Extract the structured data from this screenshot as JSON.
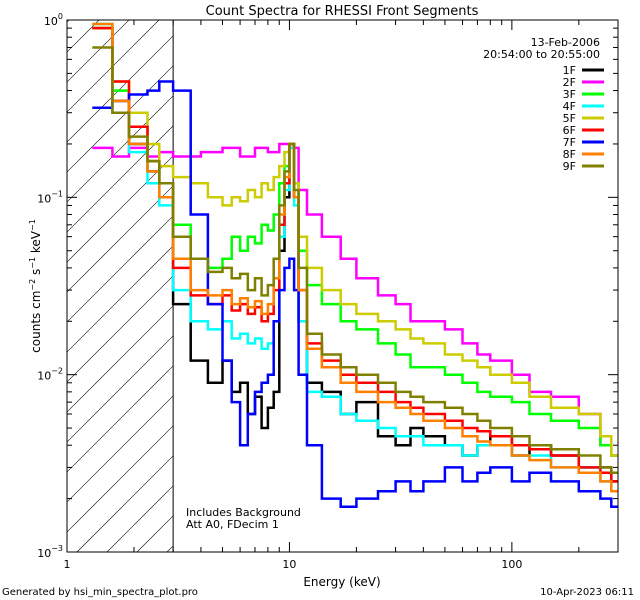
{
  "chart_data": {
    "type": "line",
    "title": "Count Spectra for RHESSI Front Segments",
    "xlabel": "Energy (keV)",
    "ylabel_parts": {
      "base": "counts cm",
      "exp1": "−2",
      "mid1": " s",
      "exp2": "−1",
      "mid2": " keV",
      "exp3": "−1"
    },
    "xscale": "log",
    "yscale": "log",
    "xlim": [
      1,
      300
    ],
    "ylim": [
      0.001,
      1
    ],
    "xticks": [
      {
        "value": 1,
        "label": "1"
      },
      {
        "value": 10,
        "label": "10"
      },
      {
        "value": 100,
        "label": "100"
      }
    ],
    "yticks": [
      {
        "value": 1,
        "base": "10",
        "exp": "0"
      },
      {
        "value": 0.1,
        "base": "10",
        "exp": "−1"
      },
      {
        "value": 0.01,
        "base": "10",
        "exp": "−2"
      },
      {
        "value": 0.001,
        "base": "10",
        "exp": "−3"
      }
    ],
    "date": "13-Feb-2006",
    "time_range": "20:54:00 to 20:55:00",
    "hatched_region_max_energy": 3,
    "annotations": [
      "Includes Background",
      "Att A0, FDecim 1"
    ],
    "series": [
      {
        "name": "1F",
        "color": "#000000",
        "x": [
          1.3,
          1.6,
          1.9,
          2.3,
          2.6,
          3.0,
          3.6,
          4.3,
          5.0,
          5.5,
          6.0,
          6.5,
          7.0,
          7.5,
          8.0,
          8.5,
          9.0,
          9.5,
          10.0,
          10.5,
          11.0,
          12.0,
          14,
          17,
          20,
          25,
          30,
          35,
          40,
          50,
          60,
          70,
          80,
          100,
          120,
          150,
          200,
          250,
          280
        ],
        "y": [
          0.9,
          0.35,
          0.2,
          0.14,
          0.1,
          0.025,
          0.012,
          0.009,
          0.012,
          0.008,
          0.009,
          0.006,
          0.0075,
          0.005,
          0.0065,
          0.008,
          0.05,
          0.1,
          0.2,
          0.1,
          0.02,
          0.009,
          0.008,
          0.006,
          0.007,
          0.0045,
          0.004,
          0.005,
          0.0045,
          0.004,
          0.0035,
          0.004,
          0.0045,
          0.0035,
          0.004,
          0.0035,
          0.003,
          0.003,
          0.0025
        ]
      },
      {
        "name": "2F",
        "color": "#ff00ff",
        "x": [
          1.3,
          1.6,
          1.9,
          2.3,
          2.6,
          3.0,
          4,
          5,
          6,
          7,
          8,
          9,
          10,
          11,
          12,
          14,
          17,
          20,
          25,
          30,
          35,
          40,
          50,
          60,
          70,
          80,
          100,
          120,
          150,
          200,
          250,
          280
        ],
        "y": [
          0.19,
          0.17,
          0.19,
          0.17,
          0.18,
          0.17,
          0.18,
          0.19,
          0.17,
          0.19,
          0.18,
          0.2,
          0.19,
          0.11,
          0.08,
          0.06,
          0.045,
          0.035,
          0.028,
          0.025,
          0.02,
          0.02,
          0.018,
          0.015,
          0.013,
          0.012,
          0.01,
          0.008,
          0.0075,
          0.006,
          0.004,
          0.0035
        ]
      },
      {
        "name": "3F",
        "color": "#00ff00",
        "x": [
          1.3,
          1.6,
          1.9,
          2.3,
          2.6,
          3.0,
          3.6,
          4.3,
          5.0,
          5.5,
          6.0,
          6.5,
          7.0,
          7.5,
          8.0,
          8.5,
          9.0,
          9.5,
          10.0,
          10.5,
          11.0,
          12.0,
          14,
          17,
          20,
          25,
          30,
          35,
          40,
          50,
          60,
          70,
          80,
          100,
          120,
          150,
          200,
          250,
          280
        ],
        "y": [
          0.9,
          0.4,
          0.25,
          0.16,
          0.12,
          0.07,
          0.045,
          0.04,
          0.045,
          0.06,
          0.05,
          0.06,
          0.055,
          0.07,
          0.065,
          0.08,
          0.12,
          0.15,
          0.2,
          0.12,
          0.05,
          0.032,
          0.025,
          0.02,
          0.018,
          0.015,
          0.013,
          0.011,
          0.011,
          0.01,
          0.009,
          0.008,
          0.0075,
          0.007,
          0.006,
          0.0055,
          0.005,
          0.004,
          0.0035
        ]
      },
      {
        "name": "4F",
        "color": "#00ffff",
        "x": [
          1.3,
          1.6,
          1.9,
          2.3,
          2.6,
          3.0,
          3.6,
          4.3,
          5.0,
          5.5,
          6.0,
          6.5,
          7.0,
          7.5,
          8.0,
          8.5,
          9.0,
          9.5,
          10.0,
          10.5,
          11.0,
          12.0,
          14,
          17,
          20,
          25,
          30,
          35,
          40,
          50,
          60,
          70,
          80,
          100,
          120,
          150,
          200,
          250,
          280
        ],
        "y": [
          0.95,
          0.3,
          0.18,
          0.12,
          0.09,
          0.03,
          0.02,
          0.018,
          0.02,
          0.016,
          0.017,
          0.015,
          0.016,
          0.014,
          0.015,
          0.02,
          0.06,
          0.11,
          0.19,
          0.09,
          0.02,
          0.008,
          0.0075,
          0.006,
          0.0055,
          0.005,
          0.0045,
          0.0045,
          0.004,
          0.004,
          0.0035,
          0.004,
          0.004,
          0.0035,
          0.0035,
          0.003,
          0.003,
          0.0025,
          0.0022
        ]
      },
      {
        "name": "5F",
        "color": "#cccc00",
        "x": [
          1.3,
          1.6,
          1.9,
          2.3,
          2.6,
          3.0,
          3.6,
          4.3,
          5.0,
          5.5,
          6.0,
          6.5,
          7.0,
          7.5,
          8.0,
          8.5,
          9.0,
          9.5,
          10.0,
          10.5,
          11.0,
          12.0,
          14,
          17,
          20,
          25,
          30,
          35,
          40,
          50,
          60,
          70,
          80,
          100,
          120,
          150,
          200,
          250,
          280
        ],
        "y": [
          0.9,
          0.45,
          0.3,
          0.2,
          0.15,
          0.13,
          0.12,
          0.1,
          0.09,
          0.1,
          0.095,
          0.11,
          0.1,
          0.12,
          0.11,
          0.13,
          0.15,
          0.18,
          0.2,
          0.12,
          0.06,
          0.04,
          0.03,
          0.025,
          0.022,
          0.02,
          0.018,
          0.016,
          0.015,
          0.013,
          0.012,
          0.011,
          0.01,
          0.009,
          0.0075,
          0.0065,
          0.006,
          0.0045,
          0.0035
        ]
      },
      {
        "name": "6F",
        "color": "#ff0000",
        "x": [
          1.3,
          1.6,
          1.9,
          2.3,
          2.6,
          3.0,
          3.6,
          4.3,
          5.0,
          5.5,
          6.0,
          6.5,
          7.0,
          7.5,
          8.0,
          8.5,
          9.0,
          9.5,
          10.0,
          10.5,
          11.0,
          12.0,
          14,
          17,
          20,
          25,
          30,
          35,
          40,
          50,
          60,
          70,
          80,
          100,
          120,
          150,
          200,
          250,
          280
        ],
        "y": [
          0.9,
          0.45,
          0.25,
          0.16,
          0.12,
          0.04,
          0.028,
          0.025,
          0.028,
          0.023,
          0.025,
          0.022,
          0.024,
          0.02,
          0.022,
          0.03,
          0.07,
          0.12,
          0.2,
          0.1,
          0.03,
          0.015,
          0.012,
          0.01,
          0.009,
          0.008,
          0.007,
          0.0065,
          0.006,
          0.0055,
          0.005,
          0.0048,
          0.0045,
          0.004,
          0.0038,
          0.0035,
          0.003,
          0.0028,
          0.0025
        ]
      },
      {
        "name": "7F",
        "color": "#0000ff",
        "x": [
          1.3,
          1.6,
          1.9,
          2.3,
          2.6,
          3.0,
          3.6,
          4.3,
          5.0,
          5.5,
          6.0,
          6.5,
          7.0,
          7.5,
          8.0,
          8.5,
          9.0,
          9.5,
          10.0,
          10.5,
          11.0,
          12.0,
          14,
          17,
          20,
          25,
          30,
          35,
          40,
          50,
          60,
          70,
          80,
          100,
          120,
          150,
          200,
          250,
          280
        ],
        "y": [
          0.32,
          0.35,
          0.38,
          0.4,
          0.45,
          0.4,
          0.08,
          0.025,
          0.012,
          0.007,
          0.004,
          0.006,
          0.008,
          0.009,
          0.01,
          0.02,
          0.03,
          0.04,
          0.045,
          0.03,
          0.01,
          0.004,
          0.002,
          0.0018,
          0.002,
          0.0022,
          0.0025,
          0.0022,
          0.0025,
          0.003,
          0.0025,
          0.0028,
          0.003,
          0.0025,
          0.0028,
          0.0025,
          0.0022,
          0.002,
          0.0018
        ]
      },
      {
        "name": "8F",
        "color": "#ff8000",
        "x": [
          1.3,
          1.6,
          1.9,
          2.3,
          2.6,
          3.0,
          3.6,
          4.3,
          5.0,
          5.5,
          6.0,
          6.5,
          7.0,
          7.5,
          8.0,
          8.5,
          9.0,
          9.5,
          10.0,
          10.5,
          11.0,
          12.0,
          14,
          17,
          20,
          25,
          30,
          35,
          40,
          50,
          60,
          70,
          80,
          100,
          120,
          150,
          200,
          250,
          280
        ],
        "y": [
          0.95,
          0.35,
          0.2,
          0.14,
          0.1,
          0.045,
          0.03,
          0.028,
          0.03,
          0.025,
          0.027,
          0.024,
          0.026,
          0.022,
          0.025,
          0.035,
          0.08,
          0.13,
          0.2,
          0.1,
          0.03,
          0.014,
          0.011,
          0.009,
          0.008,
          0.007,
          0.0065,
          0.006,
          0.0055,
          0.005,
          0.0045,
          0.0042,
          0.004,
          0.0035,
          0.0033,
          0.003,
          0.0028,
          0.0025,
          0.0022
        ]
      },
      {
        "name": "9F",
        "color": "#808000",
        "x": [
          1.3,
          1.6,
          1.9,
          2.3,
          2.6,
          3.0,
          3.6,
          4.3,
          5.0,
          5.5,
          6.0,
          6.5,
          7.0,
          7.5,
          8.0,
          8.5,
          9.0,
          9.5,
          10.0,
          10.5,
          11.0,
          12.0,
          14,
          17,
          20,
          25,
          30,
          35,
          40,
          50,
          60,
          70,
          80,
          100,
          120,
          150,
          200,
          250,
          280
        ],
        "y": [
          0.7,
          0.3,
          0.22,
          0.16,
          0.12,
          0.06,
          0.045,
          0.038,
          0.04,
          0.035,
          0.037,
          0.03,
          0.035,
          0.028,
          0.032,
          0.045,
          0.09,
          0.14,
          0.2,
          0.11,
          0.04,
          0.017,
          0.013,
          0.011,
          0.01,
          0.009,
          0.008,
          0.0075,
          0.007,
          0.0065,
          0.006,
          0.0055,
          0.005,
          0.0045,
          0.004,
          0.0038,
          0.0035,
          0.003,
          0.0028
        ]
      }
    ]
  },
  "footer": {
    "generated_by": "Generated by hsi_min_spectra_plot.pro",
    "date": "10-Apr-2023 06:11"
  }
}
